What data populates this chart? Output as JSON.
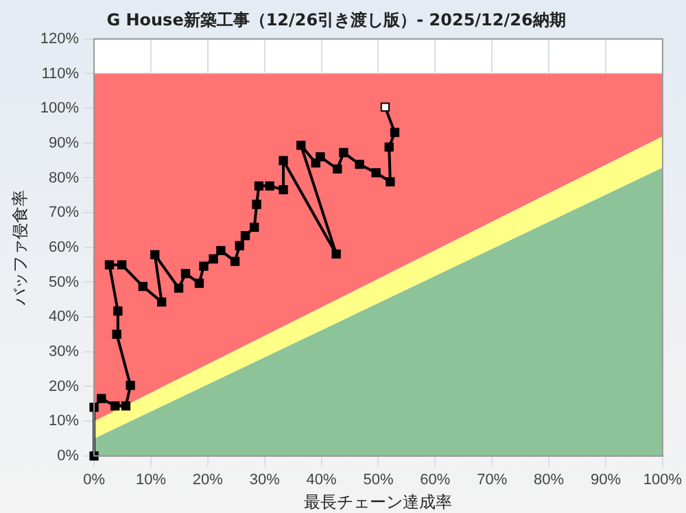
{
  "chart_data": {
    "type": "line",
    "title": "G House新築工事（12/26引き渡し版）- 2025/12/26納期",
    "xlabel": "最長チェーン達成率",
    "ylabel": "バッファ侵食率",
    "xlim": [
      0,
      100
    ],
    "ylim": [
      0,
      120
    ],
    "xticks": [
      {
        "value": 0,
        "label": "0%"
      },
      {
        "value": 10,
        "label": "10%"
      },
      {
        "value": 20,
        "label": "20%"
      },
      {
        "value": 30,
        "label": "30%"
      },
      {
        "value": 40,
        "label": "40%"
      },
      {
        "value": 50,
        "label": "50%"
      },
      {
        "value": 60,
        "label": "60%"
      },
      {
        "value": 70,
        "label": "70%"
      },
      {
        "value": 80,
        "label": "80%"
      },
      {
        "value": 90,
        "label": "90%"
      },
      {
        "value": 100,
        "label": "100%"
      }
    ],
    "yticks": [
      {
        "value": 0,
        "label": "0%"
      },
      {
        "value": 10,
        "label": "10%"
      },
      {
        "value": 20,
        "label": "20%"
      },
      {
        "value": 30,
        "label": "30%"
      },
      {
        "value": 40,
        "label": "40%"
      },
      {
        "value": 50,
        "label": "50%"
      },
      {
        "value": 60,
        "label": "60%"
      },
      {
        "value": 70,
        "label": "70%"
      },
      {
        "value": 80,
        "label": "80%"
      },
      {
        "value": 90,
        "label": "90%"
      },
      {
        "value": 100,
        "label": "100%"
      },
      {
        "value": 110,
        "label": "110%"
      },
      {
        "value": 120,
        "label": "120%"
      }
    ],
    "grid": true,
    "legend": false,
    "series": [
      {
        "type": "area",
        "color": "#8dc398",
        "x": [
          0,
          100
        ],
        "values": [
          5,
          83
        ]
      },
      {
        "type": "area",
        "color": "#ffff88",
        "x": [
          0,
          100
        ],
        "values": [
          10,
          92
        ]
      },
      {
        "type": "area",
        "color": "#ff7373",
        "x": [
          0,
          100
        ],
        "values": [
          110,
          110
        ]
      },
      {
        "color": "#000000",
        "marker": "square",
        "line_style": "solid",
        "x": [
          0,
          0,
          1.3,
          3.7,
          5.6,
          6.4,
          4,
          4.2,
          2.7,
          4.9,
          8.6,
          11.9,
          10.7,
          14.9,
          16.1,
          18.5,
          19.3,
          21,
          22.3,
          24.8,
          25.6,
          26.6,
          28.2,
          28.6,
          29,
          30.9,
          33.3,
          33.3,
          42.6,
          36.4,
          39,
          39.8,
          42.8,
          43.9,
          46.7,
          49.6,
          52.1,
          51.9,
          52.9,
          51.2
        ],
        "values": [
          0,
          14,
          16.5,
          14.4,
          14.4,
          20.3,
          35,
          41.7,
          55,
          55,
          48.8,
          44.3,
          57.9,
          48.3,
          52.5,
          49.7,
          54.6,
          56.7,
          59.1,
          56,
          60.5,
          63.4,
          65.8,
          72.4,
          77.7,
          77.7,
          76.6,
          85,
          58.1,
          89.4,
          84.3,
          86.1,
          82.6,
          87.3,
          83.9,
          81.5,
          78.9,
          88.9,
          93.1,
          100.4
        ],
        "colors": [
          "#000000",
          "#000000",
          "#000000",
          "#000000",
          "#000000",
          "#000000",
          "#000000",
          "#000000",
          "#000000",
          "#000000",
          "#000000",
          "#000000",
          "#000000",
          "#000000",
          "#000000",
          "#000000",
          "#000000",
          "#000000",
          "#000000",
          "#000000",
          "#000000",
          "#000000",
          "#000000",
          "#000000",
          "#000000",
          "#000000",
          "#000000",
          "#000000",
          "#000000",
          "#000000",
          "#000000",
          "#000000",
          "#000000",
          "#000000",
          "#000000",
          "#000000",
          "#000000",
          "#000000",
          "#000000",
          "#ffffff"
        ]
      }
    ]
  }
}
